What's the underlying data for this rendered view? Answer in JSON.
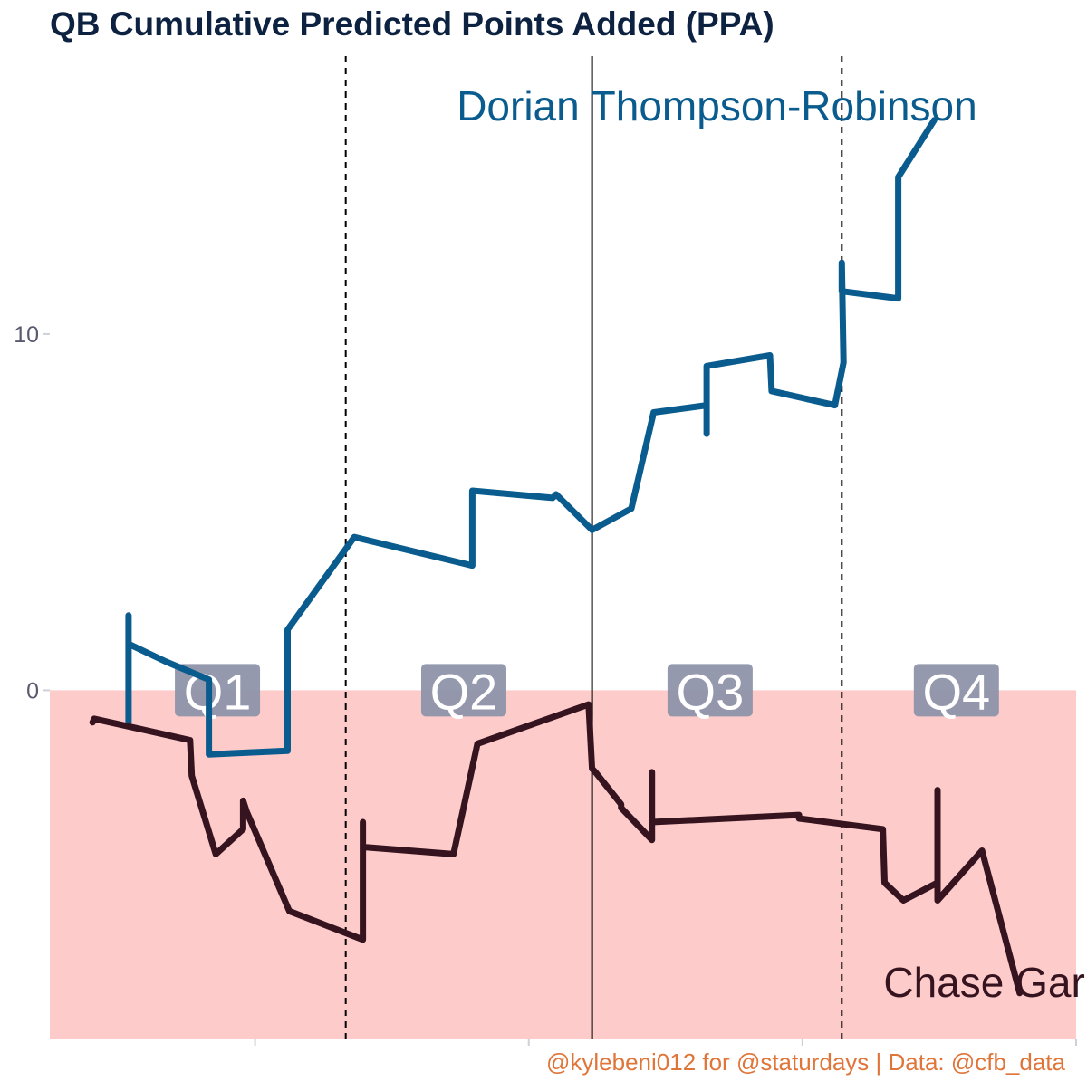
{
  "caption": "@kylebeni012 for @staturdays | Data: @cfb_data",
  "colors": {
    "series_a": "#0a5c8f",
    "series_b": "#35141f",
    "negative_band": "#fecbcb",
    "quarter_label_bg": "#8e93a9",
    "title": "#0d2240",
    "caption": "#e0753a",
    "tick_text": "#5a5a6e"
  },
  "chart_data": {
    "type": "line",
    "title": "QB Cumulative Predicted Points Added (PPA)",
    "xlabel": "",
    "ylabel": "",
    "xlim": [
      0,
      60
    ],
    "ylim": [
      -9.8,
      17.8
    ],
    "y_ticks": [
      0,
      10
    ],
    "x_ticks": [
      12,
      28,
      44,
      60
    ],
    "grid": false,
    "shaded_region": {
      "y_from": -9.8,
      "y_to": 0
    },
    "quarter_lines": [
      {
        "x": 17.3,
        "style": "dashed"
      },
      {
        "x": 31.7,
        "style": "solid"
      },
      {
        "x": 46.3,
        "style": "dashed"
      }
    ],
    "quarter_labels": [
      {
        "label": "Q1",
        "x": 9.8
      },
      {
        "label": "Q2",
        "x": 24.2
      },
      {
        "label": "Q3",
        "x": 38.6
      },
      {
        "label": "Q4",
        "x": 53.0
      }
    ],
    "series": [
      {
        "name": "Dorian Thompson-Robinson",
        "label_x": 39,
        "label_y": 16.0,
        "x": [
          4.6,
          4.6,
          4.6,
          6.8,
          9.3,
          9.3,
          13.9,
          13.9,
          17.8,
          24.7,
          24.7,
          29.4,
          29.6,
          31.7,
          34.0,
          35.3,
          38.4,
          38.4,
          38.4,
          42.1,
          42.2,
          45.9,
          46.4,
          46.3,
          46.3,
          49.6,
          49.6,
          51.7
        ],
        "y": [
          -0.9,
          2.1,
          1.3,
          0.8,
          0.3,
          -1.8,
          -1.7,
          1.7,
          4.3,
          3.5,
          5.6,
          5.4,
          5.5,
          4.5,
          5.1,
          7.8,
          8.0,
          7.2,
          9.1,
          9.4,
          8.4,
          8.0,
          9.2,
          12.0,
          11.2,
          11.0,
          14.4,
          16.0
        ]
      },
      {
        "name": "Chase Garbers",
        "label_x": 57,
        "label_y": -8.6,
        "x": [
          2.5,
          2.6,
          8.2,
          8.3,
          9.7,
          11.3,
          11.3,
          11.5,
          14.0,
          18.3,
          18.3,
          18.3,
          23.6,
          25.0,
          31.5,
          31.7,
          31.9,
          33.4,
          33.4,
          35.2,
          35.2,
          35.2,
          43.8,
          43.8,
          48.7,
          48.8,
          49.9,
          51.9,
          51.9,
          51.9,
          54.5,
          56.7
        ],
        "y": [
          -0.9,
          -0.8,
          -1.4,
          -2.4,
          -4.6,
          -3.9,
          -3.1,
          -3.4,
          -6.2,
          -7.0,
          -3.7,
          -4.4,
          -4.6,
          -1.5,
          -0.4,
          -2.2,
          -2.3,
          -3.2,
          -3.3,
          -4.2,
          -2.3,
          -3.7,
          -3.5,
          -3.6,
          -3.9,
          -5.4,
          -5.9,
          -5.4,
          -2.8,
          -5.9,
          -4.5,
          -8.5
        ]
      }
    ]
  }
}
